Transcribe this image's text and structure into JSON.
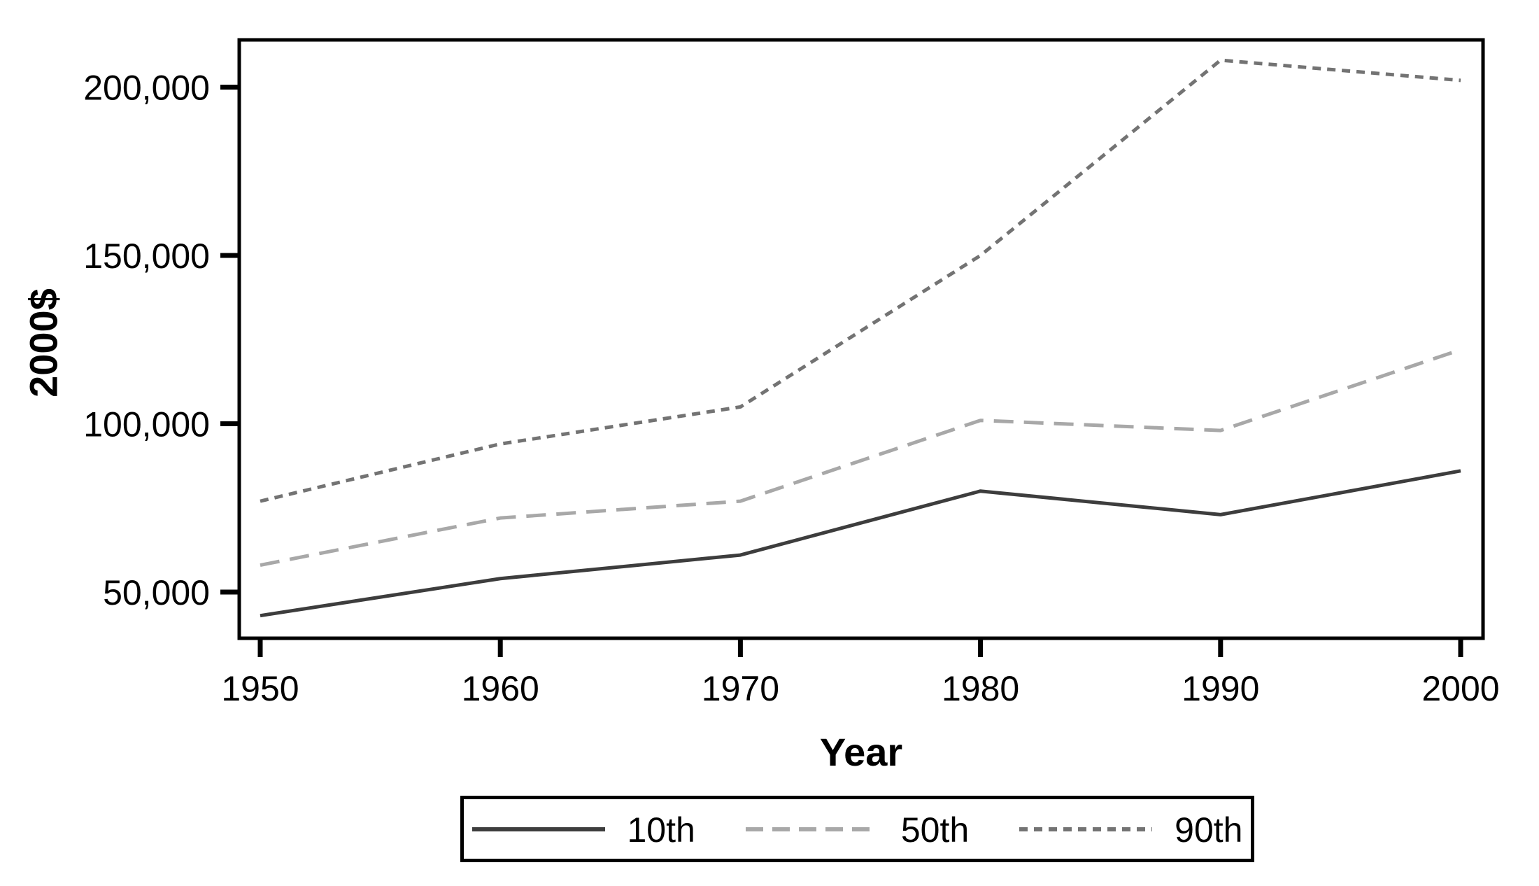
{
  "figure": {
    "background_color": "#ffffff",
    "frame_color": "#000000"
  },
  "y_axis": {
    "title": "2000$",
    "tick_labels": [
      "50,000",
      "100,000",
      "150,000",
      "200,000"
    ],
    "tick_values": [
      50000,
      100000,
      150000,
      200000
    ]
  },
  "x_axis": {
    "title": "Year",
    "tick_labels": [
      "1950",
      "1960",
      "1970",
      "1980",
      "1990",
      "2000"
    ]
  },
  "chart_data": {
    "type": "line",
    "title": "",
    "xlabel": "Year",
    "ylabel": "2000$",
    "x": [
      1950,
      1960,
      1970,
      1980,
      1990,
      2000
    ],
    "categories": [
      "1950",
      "1960",
      "1970",
      "1980",
      "1990",
      "2000"
    ],
    "ylim": [
      35000,
      216000
    ],
    "yticks": [
      50000,
      100000,
      150000,
      200000
    ],
    "grid": "off",
    "legend_position": "bottom-center",
    "series": [
      {
        "name": "10th",
        "values": [
          43000,
          54000,
          61000,
          80000,
          73000,
          86000
        ],
        "color": "#3d3d3d",
        "line_style": "solid",
        "dash": "",
        "legend_dash": ""
      },
      {
        "name": "50th",
        "values": [
          58000,
          72000,
          77000,
          101000,
          98000,
          122000
        ],
        "color": "#a8a8a8",
        "line_style": "long-dash",
        "dash": "28 15",
        "legend_dash": "25 13"
      },
      {
        "name": "90th",
        "values": [
          77000,
          94000,
          105000,
          150000,
          208000,
          202000
        ],
        "color": "#737373",
        "line_style": "short-dash",
        "dash": "12 9",
        "legend_dash": "12 9"
      }
    ]
  }
}
